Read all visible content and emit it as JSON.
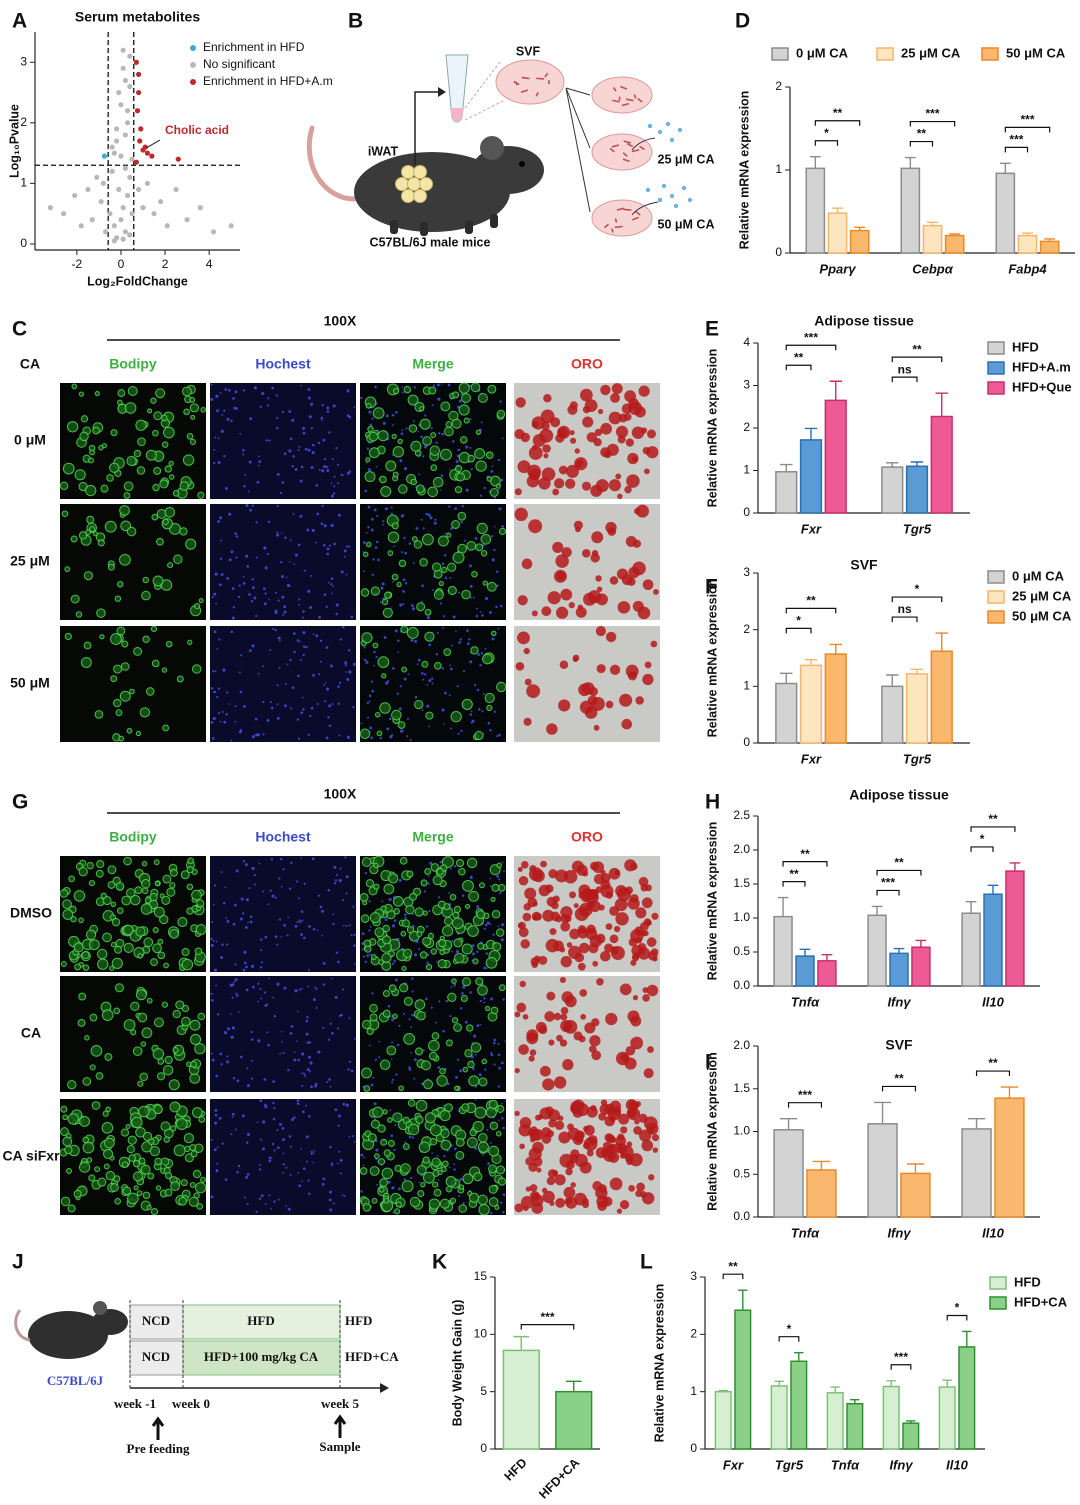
{
  "panel_labels": [
    "A",
    "B",
    "C",
    "D",
    "E",
    "F",
    "G",
    "H",
    "I",
    "J",
    "K",
    "L"
  ],
  "chart_data": [
    {
      "type": "scatter",
      "title": "Serum metabolites",
      "xlabel": "Log₂FoldChange",
      "ylabel": "Log₁₀Pvalue",
      "xlim": [
        -3.9,
        5.4
      ],
      "ylim": [
        -0.1,
        3.5
      ],
      "xticks": [
        -2,
        0,
        2,
        4
      ],
      "yticks": [
        0,
        1,
        2,
        3
      ],
      "xlines": [
        -0.58,
        0.58
      ],
      "ylines": [
        1.3
      ],
      "annotation": "Cholic acid",
      "series": [
        {
          "name": "Enrichment in HFD",
          "color": "#3fa9d8",
          "x": [
            -0.75
          ],
          "y": [
            1.45
          ]
        },
        {
          "name": "No significant",
          "color": "#b8b8b8",
          "x": [
            -3.2,
            -2.6,
            -2.1,
            -1.8,
            -1.5,
            -1.3,
            -1.1,
            -0.9,
            -0.8,
            -0.7,
            -0.5,
            -0.4,
            -0.3,
            -0.2,
            -0.1,
            0,
            0.1,
            0.2,
            0.3,
            0.4,
            0.5,
            -0.4,
            -0.2,
            0,
            0.2,
            0.4,
            -0.3,
            0.1,
            0.3,
            -0.1,
            0.2,
            0.5,
            0.8,
            1.0,
            1.2,
            1.5,
            1.8,
            2.1,
            2.5,
            3.0,
            3.6,
            4.2,
            5.0,
            -0.3,
            0.1,
            0.4,
            0.2,
            -0.2,
            0.0,
            0.3,
            0.1,
            0.4
          ],
          "y": [
            0.6,
            0.5,
            0.8,
            0.3,
            0.9,
            0.4,
            1.1,
            0.7,
            1.0,
            0.2,
            0.5,
            1.2,
            0.3,
            0.1,
            0.9,
            0.4,
            0.6,
            0.2,
            0.8,
            1.1,
            0.5,
            1.6,
            1.9,
            2.3,
            2.7,
            3.1,
            1.5,
            2.9,
            2.0,
            2.5,
            1.8,
            1.4,
            0.9,
            0.6,
            1.0,
            0.5,
            0.7,
            0.3,
            0.9,
            0.4,
            0.6,
            0.2,
            0.3,
            0.05,
            0.08,
            0.15,
            1.25,
            1.7,
            1.45,
            2.2,
            3.2,
            2.6
          ]
        },
        {
          "name": "Enrichment in HFD+A.m",
          "color": "#c0282d",
          "x": [
            0.7,
            0.8,
            0.9,
            1.0,
            1.2,
            1.4,
            0.75,
            0.85,
            1.1,
            0.7,
            2.6,
            0.8
          ],
          "y": [
            3.0,
            2.8,
            1.9,
            1.55,
            1.5,
            1.45,
            2.2,
            1.7,
            1.6,
            1.35,
            1.4,
            2.5
          ]
        }
      ]
    },
    {
      "type": "bar",
      "ylabel": "Relative mRNA expression",
      "categories": [
        "Pparγ",
        "Cebpα",
        "Fabp4"
      ],
      "ylim": [
        0,
        2
      ],
      "yticks": [
        0,
        1,
        2
      ],
      "series": [
        {
          "name": "0 μM CA",
          "color": "#d3d3d3",
          "edge": "#8c8c8c",
          "values": [
            1.02,
            1.02,
            0.96
          ],
          "errors": [
            0.14,
            0.13,
            0.12
          ]
        },
        {
          "name": "25 μM CA",
          "color": "#fde5c0",
          "edge": "#f2b66d",
          "values": [
            0.48,
            0.33,
            0.21
          ],
          "errors": [
            0.06,
            0.04,
            0.03
          ]
        },
        {
          "name": "50 μM CA",
          "color": "#f9b86e",
          "edge": "#e8892a",
          "values": [
            0.27,
            0.21,
            0.14
          ],
          "errors": [
            0.04,
            0.02,
            0.03
          ]
        }
      ],
      "significance": [
        [
          "*",
          "**"
        ],
        [
          "**",
          "***"
        ],
        [
          "***",
          "***"
        ]
      ]
    },
    {
      "type": "bar",
      "title": "Adipose tissue",
      "ylabel": "Relative mRNA expression",
      "categories": [
        "Fxr",
        "Tgr5"
      ],
      "ylim": [
        0,
        4
      ],
      "yticks": [
        0,
        1,
        2,
        3,
        4
      ],
      "series": [
        {
          "name": "HFD",
          "color": "#d3d3d3",
          "edge": "#8c8c8c",
          "values": [
            0.97,
            1.08
          ],
          "errors": [
            0.17,
            0.1
          ]
        },
        {
          "name": "HFD+A.m",
          "color": "#5b9bd5",
          "edge": "#2e6fb0",
          "values": [
            1.72,
            1.1
          ],
          "errors": [
            0.27,
            0.1
          ]
        },
        {
          "name": "HFD+Que",
          "color": "#ee5a93",
          "edge": "#c72f6c",
          "values": [
            2.65,
            2.27
          ],
          "errors": [
            0.45,
            0.55
          ]
        }
      ],
      "significance": [
        [
          "**",
          "***"
        ],
        [
          "ns",
          "**"
        ]
      ]
    },
    {
      "type": "bar",
      "title": "SVF",
      "ylabel": "Relative mRNA expression",
      "categories": [
        "Fxr",
        "Tgr5"
      ],
      "ylim": [
        0,
        3
      ],
      "yticks": [
        0,
        1,
        2,
        3
      ],
      "series": [
        {
          "name": "0 μM CA",
          "color": "#d3d3d3",
          "edge": "#8c8c8c",
          "values": [
            1.05,
            1.0
          ],
          "errors": [
            0.18,
            0.2
          ]
        },
        {
          "name": "25 μM CA",
          "color": "#fde5c0",
          "edge": "#f2b66d",
          "values": [
            1.37,
            1.22
          ],
          "errors": [
            0.1,
            0.08
          ]
        },
        {
          "name": "50 μM CA",
          "color": "#f9b86e",
          "edge": "#e8892a",
          "values": [
            1.57,
            1.62
          ],
          "errors": [
            0.17,
            0.32
          ]
        }
      ],
      "significance": [
        [
          "*",
          "**"
        ],
        [
          "ns",
          "*"
        ]
      ]
    },
    {
      "type": "bar",
      "title": "Adipose tissue",
      "ylabel": "Relative mRNA expression",
      "categories": [
        "Tnfα",
        "Ifnγ",
        "Il10"
      ],
      "ylim": [
        0,
        2.5
      ],
      "yticks": [
        {
          "value": 0,
          "label": "0.0"
        },
        0.5,
        {
          "value": 1,
          "label": "1.0"
        },
        1.5,
        {
          "value": 2,
          "label": "2.0"
        },
        2.5
      ],
      "series": [
        {
          "color": "#d3d3d3",
          "edge": "#8c8c8c",
          "values": [
            1.02,
            1.04,
            1.07
          ],
          "errors": [
            0.28,
            0.13,
            0.17
          ]
        },
        {
          "color": "#5b9bd5",
          "edge": "#2e6fb0",
          "values": [
            0.44,
            0.48,
            1.35
          ],
          "errors": [
            0.1,
            0.07,
            0.13
          ]
        },
        {
          "color": "#ee5a93",
          "edge": "#c72f6c",
          "values": [
            0.37,
            0.57,
            1.69
          ],
          "errors": [
            0.09,
            0.1,
            0.12
          ]
        }
      ],
      "significance": [
        [
          "**",
          "**"
        ],
        [
          "***",
          "**"
        ],
        [
          "*",
          "**"
        ]
      ]
    },
    {
      "type": "bar",
      "title": "SVF",
      "ylabel": "Relative mRNA expression",
      "categories": [
        "Tnfα",
        "Ifnγ",
        "Il10"
      ],
      "ylim": [
        0,
        2
      ],
      "yticks": [
        {
          "value": 0,
          "label": "0.0"
        },
        0.5,
        {
          "value": 1,
          "label": "1.0"
        },
        1.5,
        {
          "value": 2,
          "label": "2.0"
        }
      ],
      "series": [
        {
          "color": "#d3d3d3",
          "edge": "#8c8c8c",
          "values": [
            1.02,
            1.09,
            1.03
          ],
          "errors": [
            0.13,
            0.25,
            0.12
          ]
        },
        {
          "color": "#f9b86e",
          "edge": "#e8892a",
          "values": [
            0.55,
            0.51,
            1.39
          ],
          "errors": [
            0.1,
            0.11,
            0.13
          ]
        }
      ],
      "significance": [
        [
          "***"
        ],
        [
          "**"
        ],
        [
          "**"
        ]
      ]
    },
    {
      "type": "bar",
      "ylabel": "Body Weight Gain (g)",
      "categories": [
        "HFD",
        "HFD+CA"
      ],
      "ylim": [
        0,
        15
      ],
      "yticks": [
        0,
        5,
        10,
        15
      ],
      "values": [
        8.6,
        5.0
      ],
      "errors": [
        1.2,
        0.9
      ],
      "colors": [
        "#d6efd2",
        "#8bd087"
      ],
      "edges": [
        "#7fbf7b",
        "#2f8f2f"
      ],
      "significance": "***"
    },
    {
      "type": "bar",
      "ylabel": "Relative mRNA expression",
      "categories": [
        "Fxr",
        "Tgr5",
        "Tnfα",
        "Ifnγ",
        "Il10"
      ],
      "ylim": [
        0,
        3
      ],
      "yticks": [
        0,
        1,
        2,
        3
      ],
      "series": [
        {
          "name": "HFD",
          "color": "#d6efd2",
          "edge": "#7fbf7b",
          "values": [
            1.0,
            1.1,
            0.98,
            1.09,
            1.08
          ],
          "errors": [
            0.02,
            0.08,
            0.1,
            0.1,
            0.12
          ]
        },
        {
          "name": "HFD+CA",
          "color": "#8bd087",
          "edge": "#2f8f2f",
          "values": [
            2.42,
            1.53,
            0.79,
            0.45,
            1.78
          ],
          "errors": [
            0.35,
            0.15,
            0.07,
            0.04,
            0.27
          ]
        }
      ],
      "significance": [
        [
          "**"
        ],
        [
          "*"
        ],
        [
          null
        ],
        [
          "***"
        ],
        [
          "*"
        ]
      ]
    }
  ],
  "schematic_b": {
    "dish_label": "SVF",
    "tissue_label": "iWAT",
    "mouse_label": "C57BL/6J male mice",
    "treatments": [
      "25 μM CA",
      "50 μM CA"
    ]
  },
  "microscopy_c": {
    "magnification": "100X",
    "row_header": "CA",
    "column_headers": [
      "Bodipy",
      "Hochest",
      "Merge",
      "ORO"
    ],
    "row_labels": [
      "0 μM",
      "25 μM",
      "50 μM"
    ]
  },
  "microscopy_g": {
    "magnification": "100X",
    "column_headers": [
      "Bodipy",
      "Hochest",
      "Merge",
      "ORO"
    ],
    "row_labels": [
      "DMSO",
      "CA",
      "CA siFxr"
    ]
  },
  "design_j": {
    "strain": "C57BL/6J",
    "rows": [
      [
        "NCD",
        "HFD"
      ],
      [
        "NCD",
        "HFD+100 mg/kg CA"
      ]
    ],
    "group_labels": [
      "HFD",
      "HFD+CA"
    ],
    "timepoints": [
      "week -1",
      "week 0",
      "week 5"
    ],
    "events": [
      "Pre feeding",
      "Sample"
    ]
  }
}
